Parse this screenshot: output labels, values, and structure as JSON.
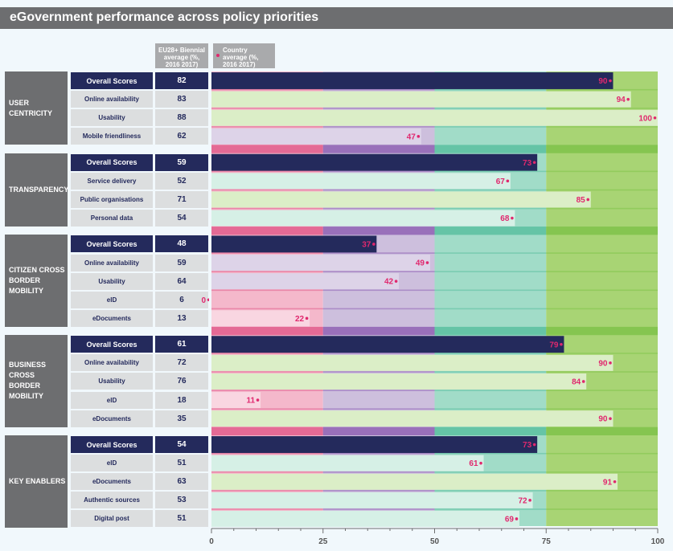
{
  "title": "eGovernment performance across policy priorities",
  "headers": {
    "eu_average": "EU28+ Biennial average (%, 2016 2017)",
    "country_average": "Country average (%, 2016 2017)"
  },
  "colors": {
    "band_0_25": "#f4b8cb",
    "band_25_50": "#cdbfdd",
    "band_50_75": "#a1dcc8",
    "band_75_100": "#a8d474",
    "overall_bar": "#242a5c",
    "sub_bar": "#f5c6d5",
    "dot": "#e0286e"
  },
  "chart_data": {
    "type": "bar",
    "orientation": "horizontal",
    "xlim": [
      0,
      100
    ],
    "xticks": [
      0,
      25,
      50,
      75,
      100
    ],
    "bands": [
      0,
      25,
      50,
      75,
      100
    ],
    "groups": [
      {
        "name": "USER CENTRICITY",
        "rows": [
          {
            "label": "Overall Scores",
            "eu": 82,
            "country": 90,
            "overall": true
          },
          {
            "label": "Online availability",
            "eu": 83,
            "country": 94
          },
          {
            "label": "Usability",
            "eu": 88,
            "country": 100
          },
          {
            "label": "Mobile friendliness",
            "eu": 62,
            "country": 47
          }
        ]
      },
      {
        "name": "TRANSPARENCY",
        "rows": [
          {
            "label": "Overall Scores",
            "eu": 59,
            "country": 73,
            "overall": true
          },
          {
            "label": "Service delivery",
            "eu": 52,
            "country": 67
          },
          {
            "label": "Public organisations",
            "eu": 71,
            "country": 85
          },
          {
            "label": "Personal data",
            "eu": 54,
            "country": 68
          }
        ]
      },
      {
        "name": "CITIZEN CROSS BORDER MOBILITY",
        "rows": [
          {
            "label": "Overall Scores",
            "eu": 48,
            "country": 37,
            "overall": true
          },
          {
            "label": "Online availability",
            "eu": 59,
            "country": 49
          },
          {
            "label": "Usability",
            "eu": 64,
            "country": 42
          },
          {
            "label": "eID",
            "eu": 6,
            "country": 0
          },
          {
            "label": "eDocuments",
            "eu": 13,
            "country": 22
          }
        ]
      },
      {
        "name": "BUSINESS CROSS BORDER MOBILITY",
        "rows": [
          {
            "label": "Overall Scores",
            "eu": 61,
            "country": 79,
            "overall": true
          },
          {
            "label": "Online availability",
            "eu": 72,
            "country": 90
          },
          {
            "label": "Usability",
            "eu": 76,
            "country": 84
          },
          {
            "label": "eID",
            "eu": 18,
            "country": 11
          },
          {
            "label": "eDocuments",
            "eu": 35,
            "country": 90
          }
        ]
      },
      {
        "name": "KEY ENABLERS",
        "rows": [
          {
            "label": "Overall Scores",
            "eu": 54,
            "country": 73,
            "overall": true
          },
          {
            "label": "eID",
            "eu": 51,
            "country": 61
          },
          {
            "label": "eDocuments",
            "eu": 63,
            "country": 91
          },
          {
            "label": "Authentic sources",
            "eu": 53,
            "country": 72
          },
          {
            "label": "Digital post",
            "eu": 51,
            "country": 69
          }
        ]
      }
    ]
  }
}
